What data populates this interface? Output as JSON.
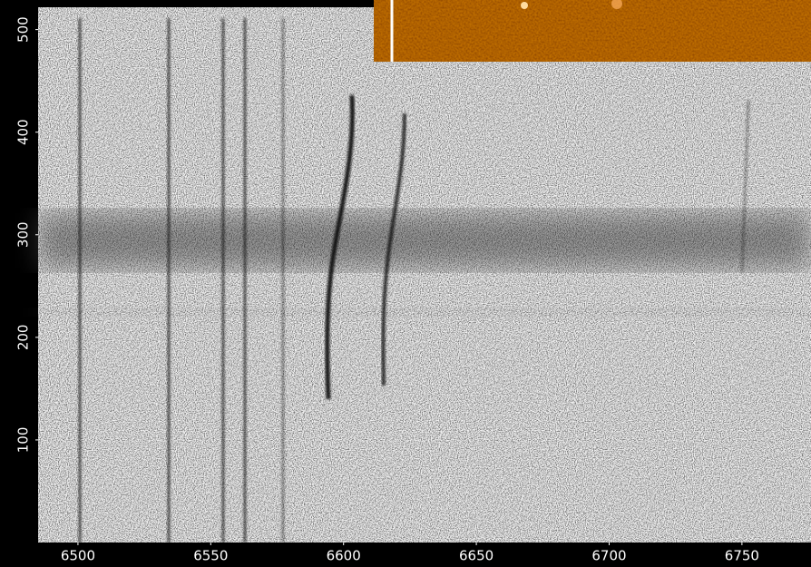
{
  "chart_data": {
    "type": "spectrum-image",
    "xlim": [
      6485,
      6776
    ],
    "xticks": [
      6500,
      6550,
      6600,
      6650,
      6700,
      6750
    ],
    "ylim": [
      0,
      520
    ],
    "yticks": [
      100,
      200,
      300,
      400,
      500
    ]
  }
}
